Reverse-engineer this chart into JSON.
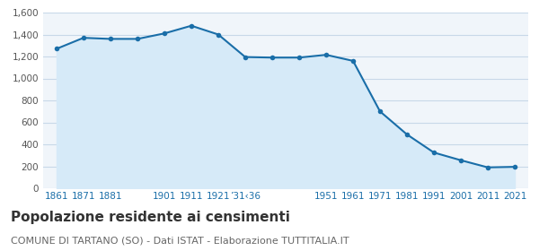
{
  "years": [
    1861,
    1871,
    1881,
    1891,
    1901,
    1911,
    1921,
    1931,
    1936,
    1941,
    1951,
    1961,
    1971,
    1981,
    1991,
    2001,
    2011,
    2021
  ],
  "population": [
    1270,
    1370,
    1360,
    1360,
    1410,
    1480,
    1400,
    1195,
    1190,
    1190,
    1215,
    1160,
    700,
    490,
    325,
    255,
    190,
    195
  ],
  "x_labels": [
    "1861",
    "1871",
    "1881",
    "",
    "1901",
    "1911",
    "1921",
    "’31‹36",
    "",
    "",
    "1951",
    "1961",
    "1971",
    "1981",
    "1991",
    "2001",
    "2011",
    "2021"
  ],
  "line_color": "#1a6ea8",
  "fill_color": "#d6eaf8",
  "marker_color": "#1a6ea8",
  "bg_color": "#f0f5fa",
  "grid_color": "#c8d8e8",
  "title": "Popolazione residente ai censimenti",
  "subtitle": "COMUNE DI TARTANO (SO) - Dati ISTAT - Elaborazione TUTTITALIA.IT",
  "ylim": [
    0,
    1600
  ],
  "yticks": [
    0,
    200,
    400,
    600,
    800,
    1000,
    1200,
    1400,
    1600
  ],
  "title_fontsize": 11,
  "subtitle_fontsize": 8
}
